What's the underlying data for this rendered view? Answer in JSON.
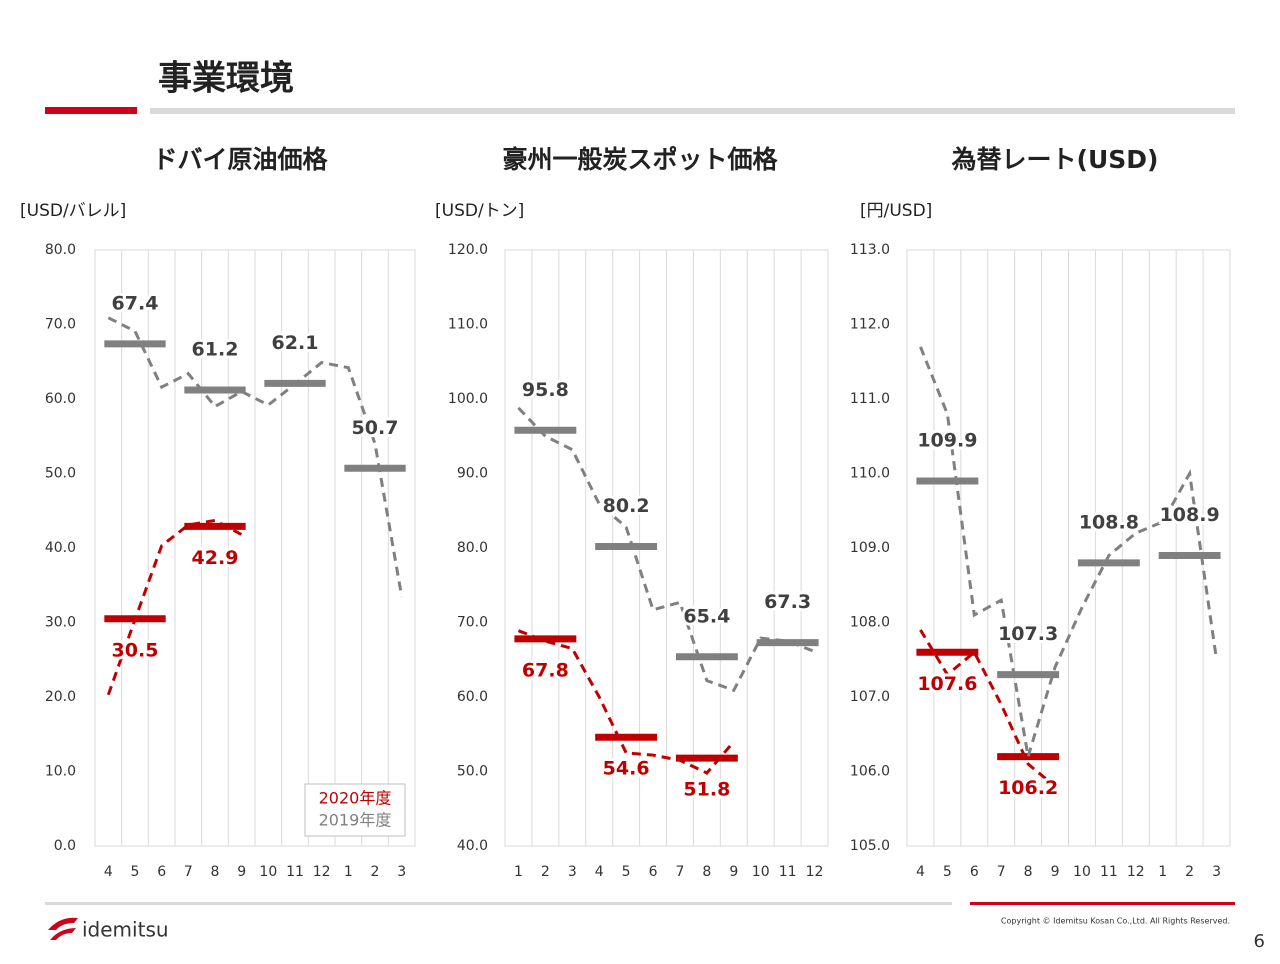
{
  "page": {
    "title": "事業環境",
    "logo": "idemitsu",
    "copyright": "Copyright © Idemitsu Kosan Co.,Ltd.  All Rights Reserved.",
    "page_number": 6
  },
  "chart_data": [
    {
      "type": "line",
      "title": "ドバイ原油価格",
      "y_label": "[USD/バレル]",
      "categories": [
        "4",
        "5",
        "6",
        "7",
        "8",
        "9",
        "10",
        "11",
        "12",
        "1",
        "2",
        "3"
      ],
      "ylim": [
        0,
        80
      ],
      "yticks": [
        {
          "value": 0,
          "label": "0.0"
        },
        {
          "value": 10,
          "label": "10.0"
        },
        {
          "value": 20,
          "label": "20.0"
        },
        {
          "value": 30,
          "label": "30.0"
        },
        {
          "value": 40,
          "label": "40.0"
        },
        {
          "value": 50,
          "label": "50.0"
        },
        {
          "value": 60,
          "label": "60.0"
        },
        {
          "value": 70,
          "label": "70.0"
        },
        {
          "value": 80,
          "label": "80.0"
        }
      ],
      "grid": true,
      "legend": "lower right",
      "series": [
        {
          "name": "2020年度",
          "color": "#c00000",
          "values": [
            20.3,
            30.4,
            40.3,
            43.1,
            43.7,
            41.8,
            null,
            null,
            null,
            null,
            null,
            null
          ],
          "averages": [
            {
              "from": "4",
              "to": "6",
              "value": 30.5
            },
            {
              "from": "7",
              "to": "9",
              "value": 42.9
            }
          ]
        },
        {
          "name": "2019年度",
          "color": "#808080",
          "values": [
            70.9,
            69.1,
            61.6,
            63.4,
            59.0,
            61.0,
            59.2,
            62.0,
            64.9,
            64.2,
            54.0,
            33.5
          ],
          "averages": [
            {
              "from": "4",
              "to": "6",
              "value": 67.4
            },
            {
              "from": "7",
              "to": "9",
              "value": 61.2
            },
            {
              "from": "10",
              "to": "12",
              "value": 62.1
            },
            {
              "from": "1",
              "to": "3",
              "value": 50.7
            }
          ]
        }
      ]
    },
    {
      "type": "line",
      "title": "豪州一般炭スポット価格",
      "y_label": "[USD/トン]",
      "categories": [
        "1",
        "2",
        "3",
        "4",
        "5",
        "6",
        "7",
        "8",
        "9",
        "10",
        "11",
        "12"
      ],
      "ylim": [
        40,
        120
      ],
      "yticks": [
        {
          "value": 40,
          "label": "40.0"
        },
        {
          "value": 50,
          "label": "50.0"
        },
        {
          "value": 60,
          "label": "60.0"
        },
        {
          "value": 70,
          "label": "70.0"
        },
        {
          "value": 80,
          "label": "80.0"
        },
        {
          "value": 90,
          "label": "90.0"
        },
        {
          "value": 100,
          "label": "100.0"
        },
        {
          "value": 110,
          "label": "110.0"
        },
        {
          "value": 120,
          "label": "120.0"
        }
      ],
      "grid": true,
      "series": [
        {
          "color": "#c00000",
          "values": [
            68.9,
            67.5,
            66.5,
            60.0,
            52.5,
            52.2,
            51.5,
            49.8,
            54.0,
            null,
            null,
            null
          ],
          "averages": [
            {
              "from": "1",
              "to": "3",
              "value": 67.8
            },
            {
              "from": "4",
              "to": "6",
              "value": 54.6
            },
            {
              "from": "7",
              "to": "9",
              "value": 51.8
            }
          ]
        },
        {
          "color": "#808080",
          "values": [
            98.8,
            95.0,
            93.2,
            85.9,
            82.8,
            71.7,
            72.7,
            62.2,
            60.9,
            67.9,
            67.5,
            66.1
          ],
          "averages": [
            {
              "from": "1",
              "to": "3",
              "value": 95.8
            },
            {
              "from": "4",
              "to": "6",
              "value": 80.2
            },
            {
              "from": "7",
              "to": "9",
              "value": 65.4
            },
            {
              "from": "10",
              "to": "12",
              "value": 67.3
            }
          ]
        }
      ]
    },
    {
      "type": "line",
      "title": "為替レート(USD)",
      "y_label": "[円/USD]",
      "categories": [
        "4",
        "5",
        "6",
        "7",
        "8",
        "9",
        "10",
        "11",
        "12",
        "1",
        "2",
        "3"
      ],
      "ylim": [
        105,
        113
      ],
      "yticks": [
        {
          "value": 105,
          "label": "105.0"
        },
        {
          "value": 106,
          "label": "106.0"
        },
        {
          "value": 107,
          "label": "107.0"
        },
        {
          "value": 108,
          "label": "108.0"
        },
        {
          "value": 109,
          "label": "109.0"
        },
        {
          "value": 110,
          "label": "110.0"
        },
        {
          "value": 111,
          "label": "111.0"
        },
        {
          "value": 112,
          "label": "112.0"
        },
        {
          "value": 113,
          "label": "113.0"
        }
      ],
      "grid": true,
      "series": [
        {
          "color": "#c00000",
          "values": [
            107.9,
            107.3,
            107.6,
            106.9,
            106.1,
            105.8,
            null,
            null,
            null,
            null,
            null,
            null
          ],
          "averages": [
            {
              "from": "4",
              "to": "6",
              "value": 107.6
            },
            {
              "from": "7",
              "to": "9",
              "value": 106.2
            }
          ]
        },
        {
          "color": "#808080",
          "values": [
            111.7,
            110.8,
            108.1,
            108.3,
            106.2,
            107.4,
            108.2,
            108.9,
            109.2,
            109.35,
            110.0,
            107.5
          ],
          "averages": [
            {
              "from": "4",
              "to": "6",
              "value": 109.9
            },
            {
              "from": "7",
              "to": "9",
              "value": 107.3
            },
            {
              "from": "10",
              "to": "12",
              "value": 108.8
            },
            {
              "from": "1",
              "to": "3",
              "value": 108.9
            }
          ]
        }
      ]
    }
  ]
}
